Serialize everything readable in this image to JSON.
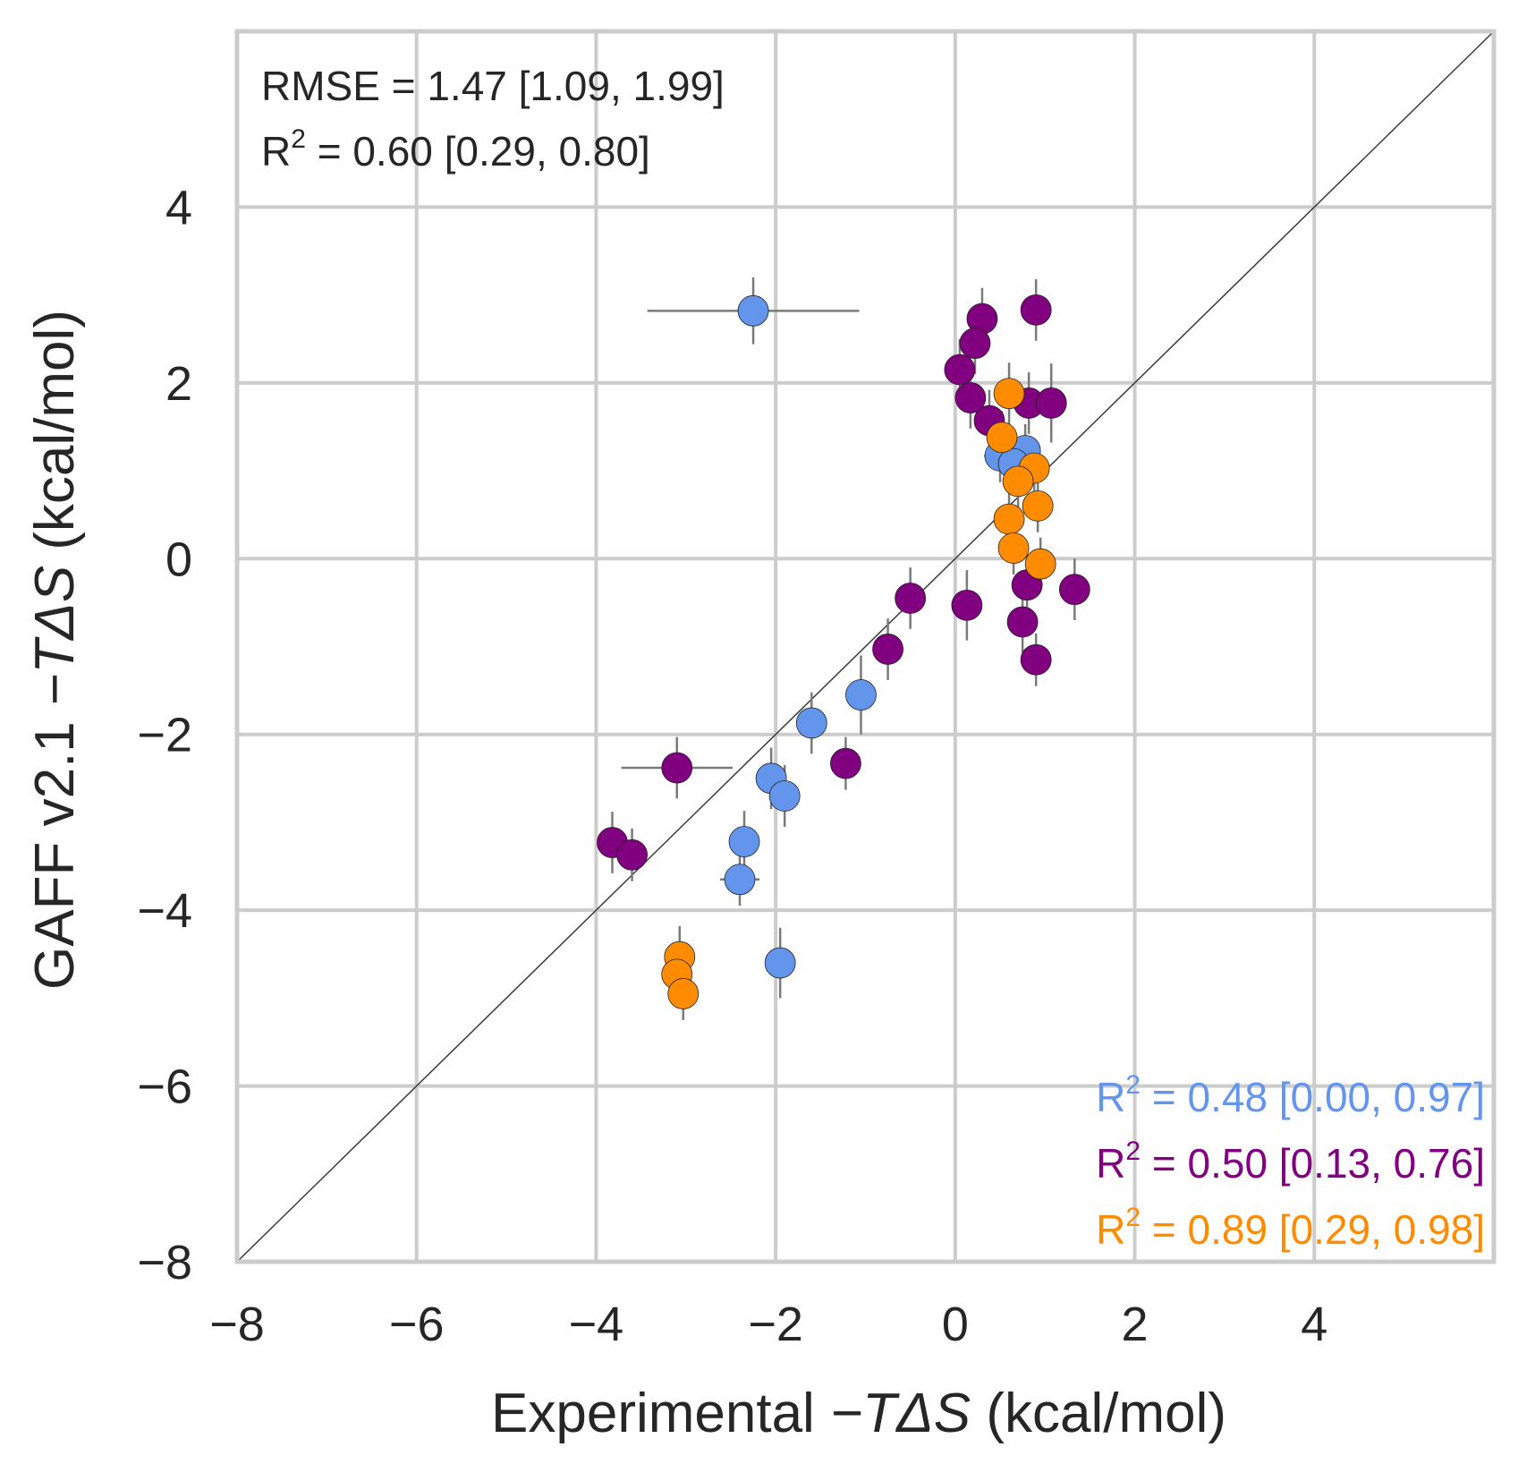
{
  "chart_data": {
    "type": "scatter",
    "title": "",
    "xlabel_prefix": "Experimental ",
    "xlabel_var": "−TΔS",
    "xlabel_suffix": " (kcal/mol)",
    "ylabel_prefix": "GAFF v2.1 ",
    "ylabel_var": "−TΔS",
    "ylabel_suffix": " (kcal/mol)",
    "xlim": [
      -8,
      6
    ],
    "ylim": [
      -8,
      6
    ],
    "xticks": [
      -8,
      -6,
      -4,
      -2,
      0,
      2,
      4
    ],
    "yticks": [
      -8,
      -6,
      -4,
      -2,
      0,
      2,
      4
    ],
    "xtick_labels": [
      "−8",
      "−6",
      "−4",
      "−2",
      "0",
      "2",
      "4"
    ],
    "ytick_labels": [
      "−8",
      "−6",
      "−4",
      "−2",
      "0",
      "2",
      "4"
    ],
    "grid": true,
    "diagonal_line": true,
    "annotations": {
      "rmse": {
        "label": "RMSE = 1.47 [1.09, 1.99]"
      },
      "r2_overall": {
        "prefix": "R",
        "sup": "2",
        "rest": " = 0.60 [0.29, 0.80]"
      }
    },
    "series": [
      {
        "color": "#6495ed",
        "r2_prefix": "R",
        "r2_sup": "2",
        "r2_rest": " = 0.48 [0.00, 0.97]",
        "points": [
          {
            "x": -2.25,
            "y": 2.82,
            "xerr": 1.18,
            "yerr": 0.38
          },
          {
            "x": 0.5,
            "y": 1.17,
            "xerr": 0.18,
            "yerr": 0.3
          },
          {
            "x": 0.78,
            "y": 1.23,
            "xerr": 0.1,
            "yerr": 0.3
          },
          {
            "x": 0.65,
            "y": 1.08,
            "xerr": 0.1,
            "yerr": 0.3
          },
          {
            "x": -1.05,
            "y": -1.55,
            "xerr": 0.1,
            "yerr": 0.45
          },
          {
            "x": -1.6,
            "y": -1.87,
            "xerr": 0.1,
            "yerr": 0.35
          },
          {
            "x": -2.05,
            "y": -2.5,
            "xerr": 0.1,
            "yerr": 0.35
          },
          {
            "x": -1.9,
            "y": -2.7,
            "xerr": 0.1,
            "yerr": 0.35
          },
          {
            "x": -2.35,
            "y": -3.22,
            "xerr": 0.1,
            "yerr": 0.35
          },
          {
            "x": -2.4,
            "y": -3.65,
            "xerr": 0.22,
            "yerr": 0.3
          },
          {
            "x": -1.95,
            "y": -4.6,
            "xerr": 0.1,
            "yerr": 0.4
          }
        ]
      },
      {
        "color": "#800080",
        "r2_prefix": "R",
        "r2_sup": "2",
        "r2_rest": " = 0.50 [0.13, 0.76]",
        "points": [
          {
            "x": 0.3,
            "y": 2.73,
            "xerr": 0.1,
            "yerr": 0.35
          },
          {
            "x": 0.9,
            "y": 2.83,
            "xerr": 0.1,
            "yerr": 0.35
          },
          {
            "x": 0.22,
            "y": 2.45,
            "xerr": 0.1,
            "yerr": 0.35
          },
          {
            "x": 0.05,
            "y": 2.15,
            "xerr": 0.1,
            "yerr": 0.35
          },
          {
            "x": 0.17,
            "y": 1.83,
            "xerr": 0.1,
            "yerr": 0.35
          },
          {
            "x": 0.82,
            "y": 1.77,
            "xerr": 0.1,
            "yerr": 0.35
          },
          {
            "x": 1.07,
            "y": 1.77,
            "xerr": 0.1,
            "yerr": 0.45
          },
          {
            "x": 0.38,
            "y": 1.57,
            "xerr": 0.1,
            "yerr": 0.35
          },
          {
            "x": -0.5,
            "y": -0.45,
            "xerr": 0.1,
            "yerr": 0.35
          },
          {
            "x": 0.13,
            "y": -0.53,
            "xerr": 0.1,
            "yerr": 0.4
          },
          {
            "x": 0.8,
            "y": -0.3,
            "xerr": 0.1,
            "yerr": 0.35
          },
          {
            "x": 1.33,
            "y": -0.35,
            "xerr": 0.1,
            "yerr": 0.35
          },
          {
            "x": 0.75,
            "y": -0.72,
            "xerr": 0.1,
            "yerr": 0.35
          },
          {
            "x": 0.9,
            "y": -1.15,
            "xerr": 0.1,
            "yerr": 0.3
          },
          {
            "x": -0.75,
            "y": -1.03,
            "xerr": 0.1,
            "yerr": 0.35
          },
          {
            "x": -1.22,
            "y": -2.33,
            "xerr": 0.1,
            "yerr": 0.3
          },
          {
            "x": -3.1,
            "y": -2.38,
            "xerr": 0.62,
            "yerr": 0.35
          },
          {
            "x": -3.82,
            "y": -3.23,
            "xerr": 0.1,
            "yerr": 0.35
          },
          {
            "x": -3.6,
            "y": -3.37,
            "xerr": 0.1,
            "yerr": 0.3
          }
        ]
      },
      {
        "color": "#ff8c00",
        "r2_prefix": "R",
        "r2_sup": "2",
        "r2_rest": " = 0.89 [0.29, 0.98]",
        "points": [
          {
            "x": 0.6,
            "y": 1.88,
            "xerr": 0.1,
            "yerr": 0.35
          },
          {
            "x": 0.52,
            "y": 1.38,
            "xerr": 0.1,
            "yerr": 0.3
          },
          {
            "x": 0.88,
            "y": 1.03,
            "xerr": 0.1,
            "yerr": 0.3
          },
          {
            "x": 0.7,
            "y": 0.88,
            "xerr": 0.1,
            "yerr": 0.3
          },
          {
            "x": 0.92,
            "y": 0.6,
            "xerr": 0.1,
            "yerr": 0.3
          },
          {
            "x": 0.6,
            "y": 0.45,
            "xerr": 0.1,
            "yerr": 0.3
          },
          {
            "x": 0.65,
            "y": 0.12,
            "xerr": 0.1,
            "yerr": 0.3
          },
          {
            "x": 0.95,
            "y": -0.06,
            "xerr": 0.1,
            "yerr": 0.3
          },
          {
            "x": -3.07,
            "y": -4.53,
            "xerr": 0.1,
            "yerr": 0.35
          },
          {
            "x": -3.1,
            "y": -4.73,
            "xerr": 0.1,
            "yerr": 0.3
          },
          {
            "x": -3.03,
            "y": -4.95,
            "xerr": 0.1,
            "yerr": 0.3
          }
        ]
      }
    ]
  }
}
